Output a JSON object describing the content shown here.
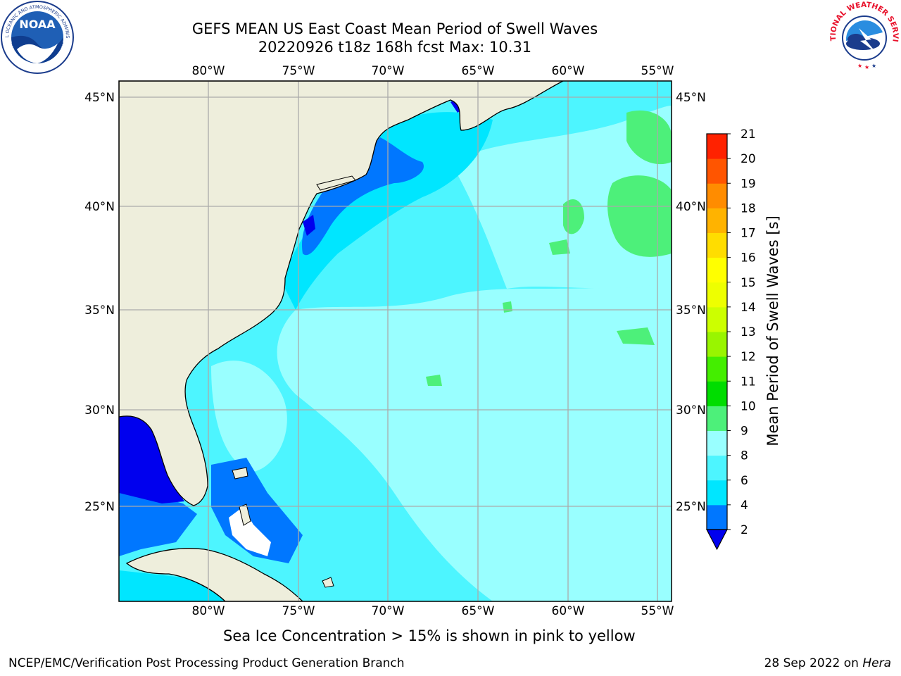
{
  "header": {
    "title": "GEFS MEAN US East Coast Mean Period of Swell Waves",
    "subtitle": "20220926 t18z 168h fcst   Max: 10.31"
  },
  "logos": {
    "left": "noaa-logo",
    "left_text": "NOAA",
    "left_ring_top": "NATIONAL OCEANIC AND ATMOSPHERIC ADMINISTRATION",
    "left_ring_bottom": "U.S. DEPARTMENT OF COMMERCE",
    "right": "national-weather-service-logo",
    "right_ring": "NATIONAL WEATHER SERVICE"
  },
  "map": {
    "lon_labels": [
      "80°W",
      "75°W",
      "70°W",
      "65°W",
      "60°W",
      "55°W"
    ],
    "lat_labels": [
      "45°N",
      "40°N",
      "35°N",
      "30°N",
      "25°N"
    ],
    "colors": {
      "land": "#eeeedc",
      "coast": "#000000",
      "grid": "#aaaaaa"
    }
  },
  "colorbar": {
    "label": "Mean Period of Swell Waves [s]",
    "ticks": [
      "2",
      "4",
      "6",
      "8",
      "9",
      "10",
      "11",
      "12",
      "13",
      "14",
      "15",
      "16",
      "17",
      "18",
      "19",
      "20",
      "21"
    ],
    "colors": [
      "#0077ff",
      "#00e6ff",
      "#4df5ff",
      "#99ffff",
      "#4df07a",
      "#00dd00",
      "#44ee00",
      "#99f500",
      "#ccff00",
      "#eeff00",
      "#ffff00",
      "#ffdd00",
      "#ffb300",
      "#ff8c00",
      "#ff5500",
      "#ff2200",
      "#ff0000"
    ],
    "under_color": "#0000ee"
  },
  "footer": {
    "note": "Sea Ice Concentration > 15% is shown in pink to yellow",
    "credit": "NCEP/EMC/Verification Post Processing Product Generation Branch",
    "date": "28 Sep 2022 on",
    "machine": "Hera"
  }
}
